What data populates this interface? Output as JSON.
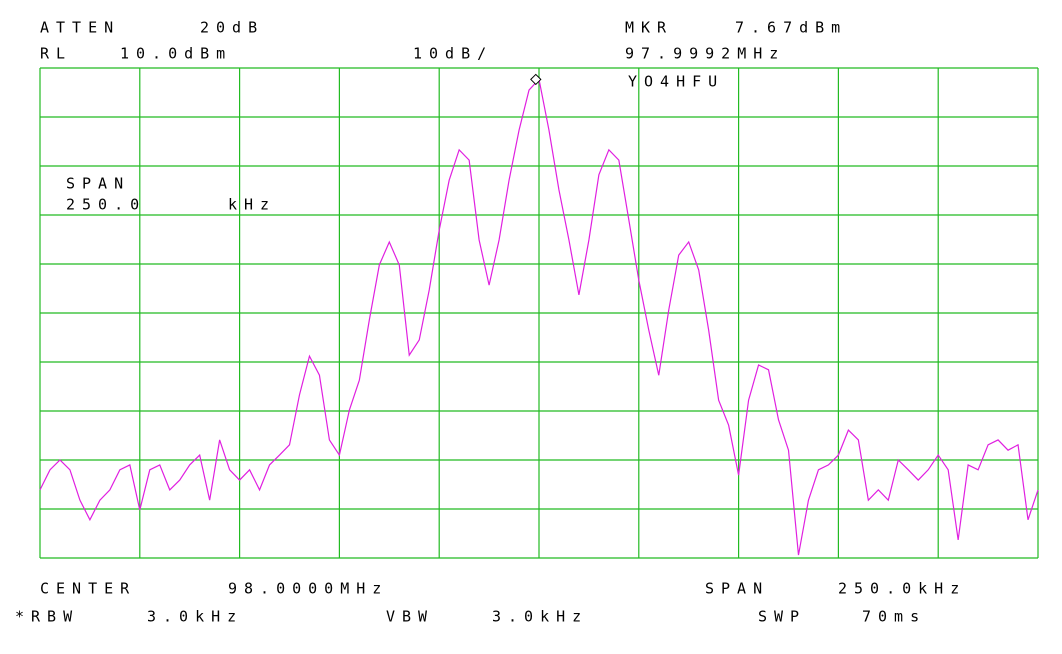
{
  "chart_data": {
    "type": "line",
    "annotations": {
      "atten_label": "ATTEN",
      "atten": "20dB",
      "ref_label": "RL",
      "ref_level": "10.0dBm",
      "scale": "10dB/",
      "marker_label": "MKR",
      "marker_level": "7.67dBm",
      "marker_freq": "97.9992MHz",
      "callsign": "YO4HFU",
      "inner_span_label": "SPAN",
      "inner_span": "250.0",
      "inner_span_unit": "kHz",
      "center_label": "CENTER",
      "center": "98.0000MHz",
      "span_label": "SPAN",
      "span": "250.0kHz",
      "rbw_label": "*RBW",
      "rbw": "3.0kHz",
      "vbw_label": "VBW",
      "vbw": "3.0kHz",
      "swp_label": "SWP",
      "swp": "70ms"
    },
    "x": [
      97.875,
      97.8775,
      97.88,
      97.8825,
      97.885,
      97.8875,
      97.89,
      97.8925,
      97.895,
      97.8975,
      97.9,
      97.9025,
      97.905,
      97.9075,
      97.91,
      97.9125,
      97.915,
      97.9175,
      97.92,
      97.9225,
      97.925,
      97.9275,
      97.93,
      97.9325,
      97.935,
      97.9375,
      97.94,
      97.9425,
      97.945,
      97.9475,
      97.95,
      97.9525,
      97.955,
      97.9575,
      97.96,
      97.9625,
      97.965,
      97.9675,
      97.97,
      97.9725,
      97.975,
      97.9775,
      97.98,
      97.9825,
      97.985,
      97.9875,
      97.99,
      97.9925,
      97.995,
      97.9975,
      98.0,
      98.0025,
      98.005,
      98.0075,
      98.01,
      98.0125,
      98.015,
      98.0175,
      98.02,
      98.0225,
      98.025,
      98.0275,
      98.03,
      98.0325,
      98.035,
      98.0375,
      98.04,
      98.0425,
      98.045,
      98.0475,
      98.05,
      98.0525,
      98.055,
      98.0575,
      98.06,
      98.0625,
      98.065,
      98.0675,
      98.07,
      98.0725,
      98.075,
      98.0775,
      98.08,
      98.0825,
      98.085,
      98.0875,
      98.09,
      98.0925,
      98.095,
      98.0975,
      98.1,
      98.1025,
      98.105,
      98.1075,
      98.11,
      98.1125,
      98.115,
      98.1175,
      98.12,
      98.1225,
      98.125
    ],
    "series": [
      {
        "color": "#e020e0",
        "values": [
          -76.1,
          -72.0,
          -70.0,
          -72.0,
          -78.2,
          -82.2,
          -78.2,
          -76.1,
          -72.0,
          -71.0,
          -80.2,
          -72.0,
          -71.0,
          -76.1,
          -74.1,
          -71.0,
          -69.0,
          -78.2,
          -65.9,
          -72.0,
          -74.1,
          -72.0,
          -76.1,
          -71.0,
          -69.0,
          -66.9,
          -56.7,
          -48.8,
          -52.7,
          -65.9,
          -69.0,
          -59.8,
          -53.7,
          -41.4,
          -30.2,
          -25.5,
          -30.2,
          -48.6,
          -45.5,
          -35.3,
          -23.1,
          -12.9,
          -6.7,
          -8.8,
          -25.1,
          -34.3,
          -25.1,
          -12.9,
          -2.7,
          5.5,
          7.7,
          -2.7,
          -14.9,
          -25.1,
          -36.3,
          -25.1,
          -11.8,
          -6.7,
          -8.8,
          -21.0,
          -33.3,
          -43.5,
          -52.7,
          -39.4,
          -28.2,
          -25.5,
          -31.2,
          -43.5,
          -57.8,
          -62.9,
          -73.1,
          -57.8,
          -50.6,
          -51.6,
          -61.8,
          -68.0,
          -89.4,
          -78.2,
          -72.0,
          -71.0,
          -69.0,
          -63.9,
          -65.9,
          -78.2,
          -76.1,
          -78.2,
          -70.0,
          -72.0,
          -74.1,
          -72.0,
          -69.0,
          -72.0,
          -86.3,
          -71.0,
          -72.0,
          -66.9,
          -65.9,
          -68.0,
          -66.9,
          -82.2,
          -76.1
        ]
      }
    ],
    "marker": {
      "x": 97.9992,
      "y": 7.67
    },
    "xlim": [
      97.875,
      98.125
    ],
    "ylim": [
      -90,
      10
    ],
    "xticks": [
      97.875,
      97.9,
      97.925,
      97.95,
      97.975,
      98.0,
      98.025,
      98.05,
      98.075,
      98.1,
      98.125
    ],
    "yticks": [
      -90,
      -80,
      -70,
      -60,
      -50,
      -40,
      -30,
      -20,
      -10,
      0,
      10
    ],
    "grid": true,
    "grid_color": "#22bb22"
  }
}
